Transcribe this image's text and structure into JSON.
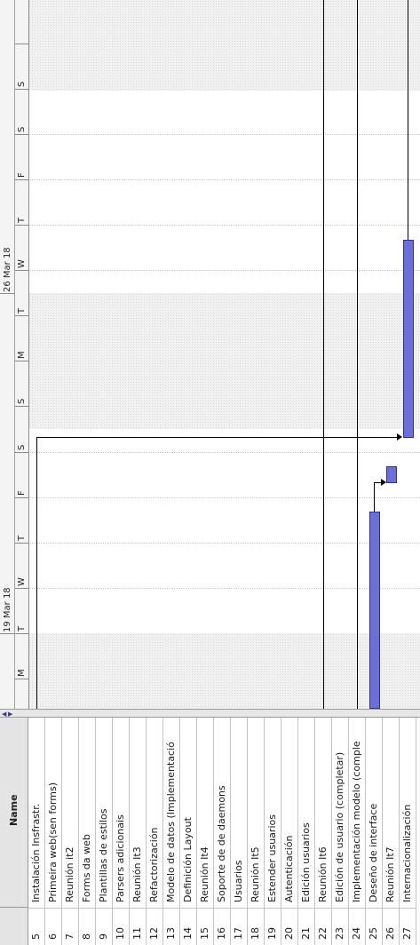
{
  "timescale": {
    "weeks": [
      "19 Mar 18",
      "26 Mar 18"
    ],
    "days": [
      "S",
      "M",
      "T",
      "W",
      "T",
      "F",
      "S",
      "S",
      "M",
      "T",
      "W",
      "T",
      "F",
      "S",
      "S"
    ]
  },
  "table": {
    "header_name": "Name",
    "rows": [
      {
        "num": "5",
        "name": "Instalación Insfrastr."
      },
      {
        "num": "6",
        "name": "Primeira web(sen forms)"
      },
      {
        "num": "7",
        "name": "Reunión it2"
      },
      {
        "num": "8",
        "name": "Forms da web"
      },
      {
        "num": "9",
        "name": "Plantillas de estilos"
      },
      {
        "num": "10",
        "name": "Parsers adicionais"
      },
      {
        "num": "11",
        "name": "Reunión It3"
      },
      {
        "num": "12",
        "name": "Refactorización"
      },
      {
        "num": "13",
        "name": "Modelo de datos (Implementació"
      },
      {
        "num": "14",
        "name": "Definición Layout"
      },
      {
        "num": "15",
        "name": "Reunión It4"
      },
      {
        "num": "16",
        "name": "Soporte de de daemons"
      },
      {
        "num": "17",
        "name": "Usuarios"
      },
      {
        "num": "18",
        "name": "Reunión It5"
      },
      {
        "num": "19",
        "name": "Estender usuarios"
      },
      {
        "num": "20",
        "name": "Autenticación"
      },
      {
        "num": "21",
        "name": "Edición usuarios"
      },
      {
        "num": "22",
        "name": "Reunión It6"
      },
      {
        "num": "23",
        "name": "Edición de usuario (completar)"
      },
      {
        "num": "24",
        "name": "Implementación modelo (comple"
      },
      {
        "num": "25",
        "name": "Deseño de interface"
      },
      {
        "num": "26",
        "name": "Reunión It7"
      },
      {
        "num": "27",
        "name": "Internacionalización"
      }
    ]
  },
  "colors": {
    "bar_fill": "#6b6fd6",
    "bar_border": "#2c2f8c",
    "weekend": "#f2f2f2"
  }
}
